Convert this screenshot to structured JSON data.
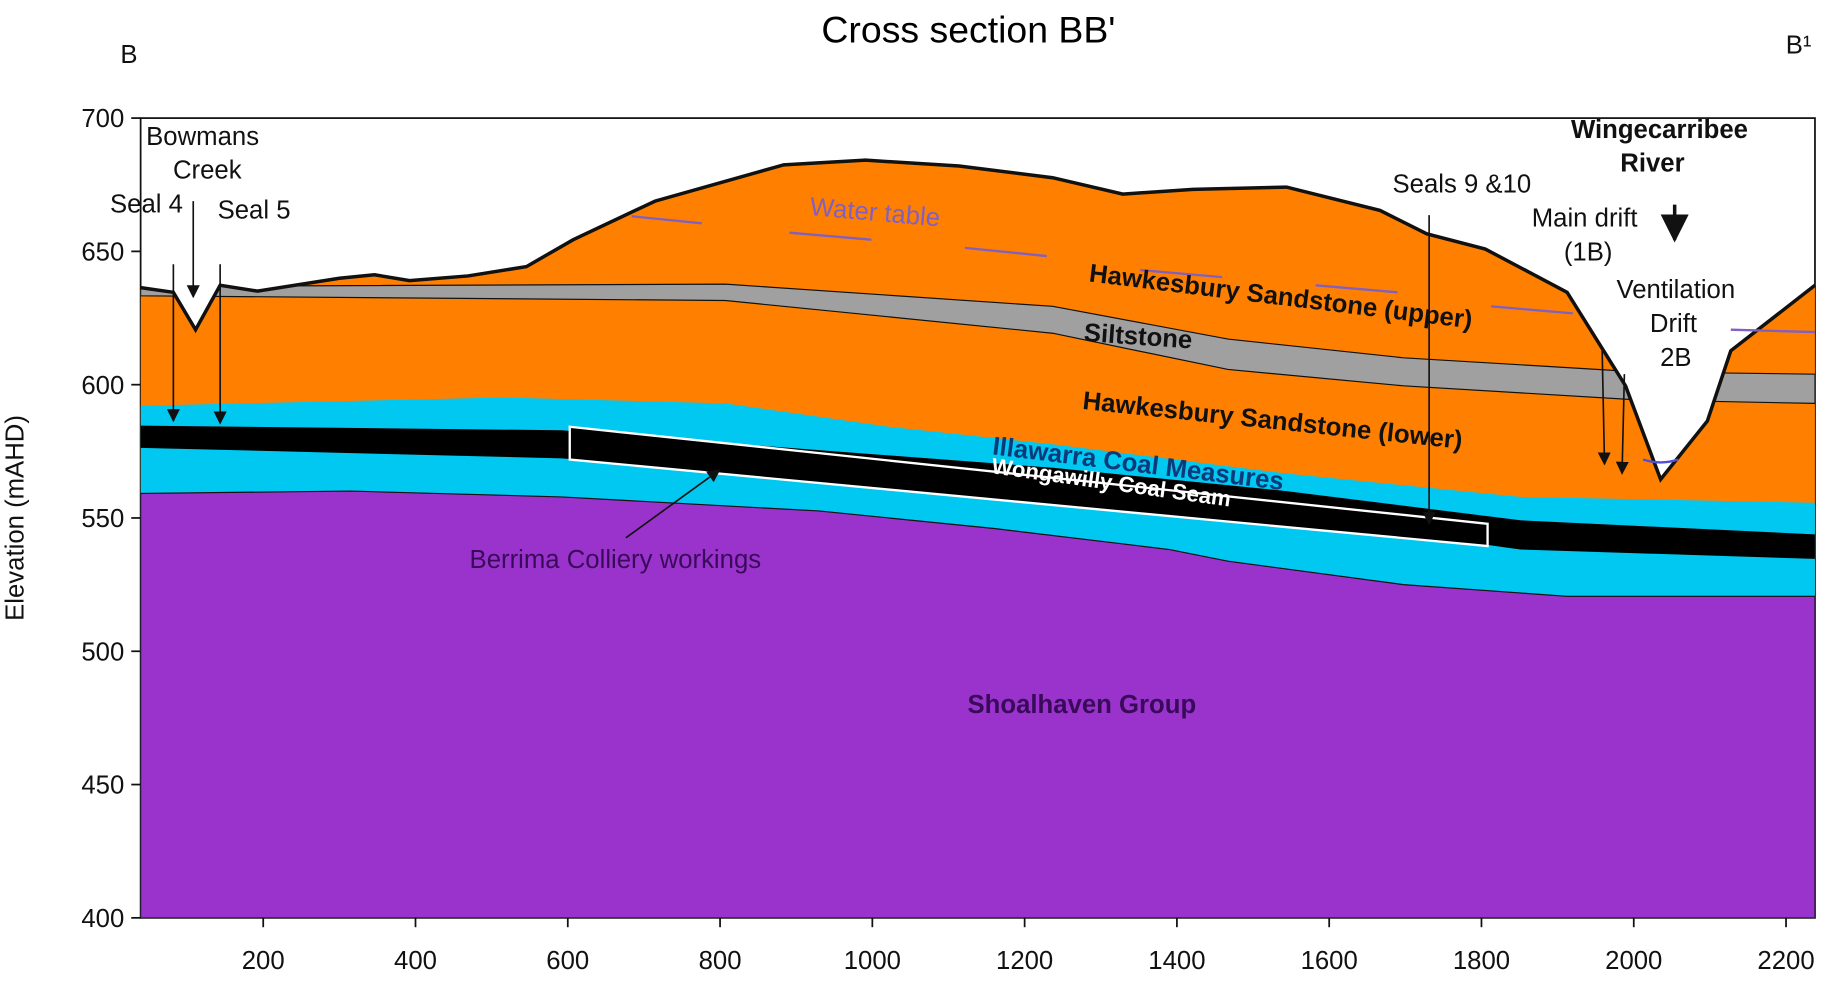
{
  "title": "Cross section BB'",
  "corner_left": "B",
  "corner_right": "B¹",
  "axes": {
    "ylabel": "Elevation (mAHD)",
    "xlim": [
      39,
      2238
    ],
    "ylim": [
      400,
      700
    ],
    "xticks": [
      200,
      400,
      600,
      800,
      1000,
      1200,
      1400,
      1600,
      1800,
      2000,
      2200
    ],
    "yticks": [
      400,
      450,
      500,
      550,
      600,
      650,
      700
    ]
  },
  "labels": {
    "bowmans_creek": [
      "Bowmans",
      "Creek"
    ],
    "seal_4": "Seal 4",
    "seal_5": "Seal 5",
    "water_table": "Water table",
    "hawkesbury_upper": "Hawkesbury Sandstone (upper)",
    "siltstone": "Siltstone",
    "hawkesbury_lower": "Hawkesbury Sandstone (lower)",
    "illawarra": "Illawarra Coal Measures",
    "wongawilly": "Wongawilly Coal Seam",
    "berrima": "Berrima Colliery workings",
    "shoalhaven": "Shoalhaven Group",
    "seals_9_10": "Seals 9 &10",
    "wingecarribee": [
      "Wingecarribee",
      "River"
    ],
    "main_drift": [
      "Main drift",
      "(1B)"
    ],
    "ventilation": [
      "Ventilation",
      "Drift",
      "2B"
    ]
  }
}
